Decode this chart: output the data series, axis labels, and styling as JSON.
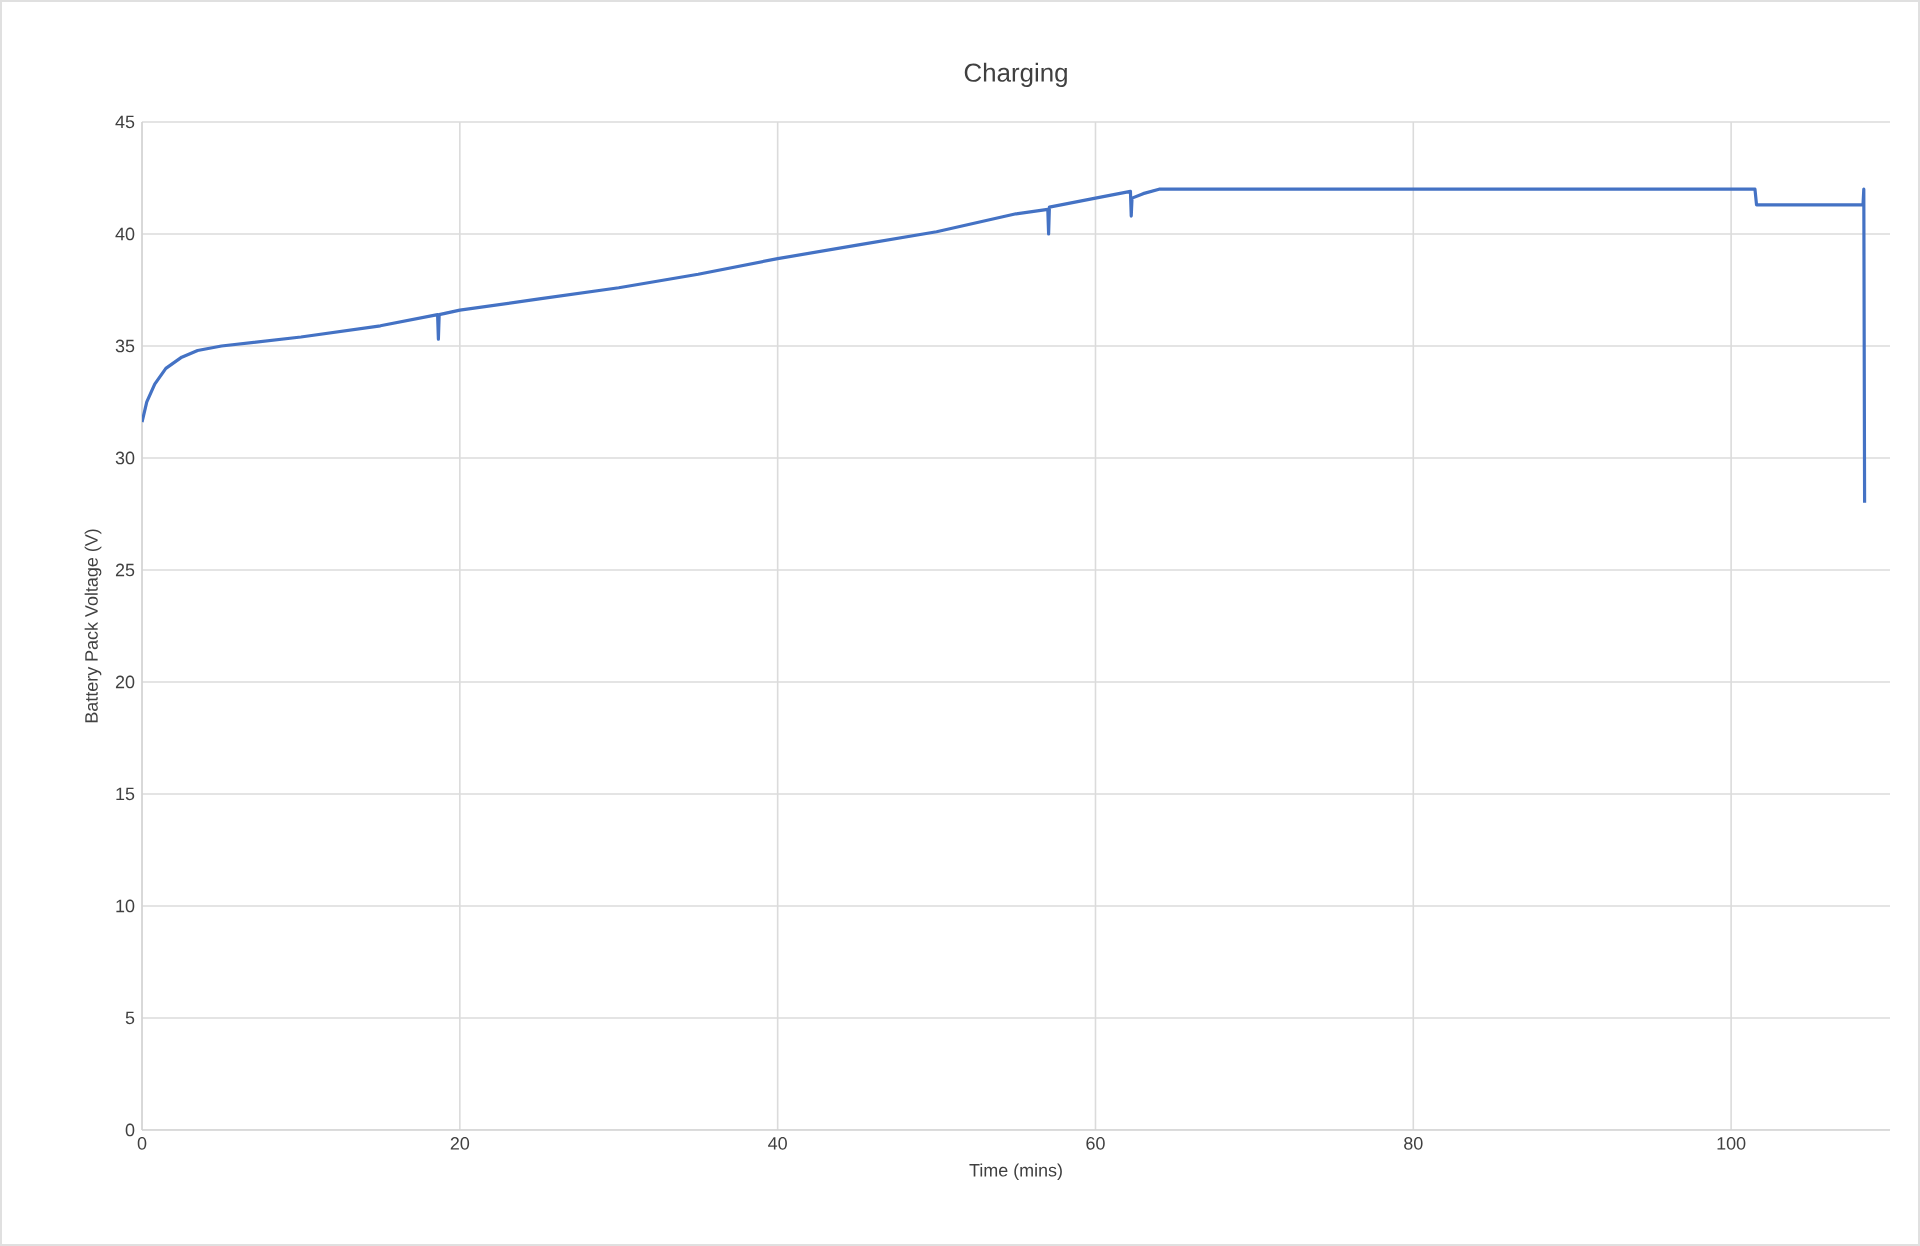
{
  "chart_data": {
    "type": "line",
    "title": "Charging",
    "xlabel": "Time (mins)",
    "ylabel": "Battery Pack Voltage (V)",
    "xlim": [
      0,
      110
    ],
    "xticks": [
      0,
      20,
      40,
      60,
      80,
      100
    ],
    "ylim": [
      0,
      45
    ],
    "yticks": [
      0,
      5,
      10,
      15,
      20,
      25,
      30,
      35,
      40,
      45
    ],
    "grid": true,
    "marker": "none",
    "line_style": "solid",
    "series": [
      {
        "color": "#4472c4",
        "x": [
          0,
          0.3,
          0.8,
          1.5,
          2.5,
          3.5,
          5,
          10,
          15,
          18.6,
          18.65,
          18.7,
          20,
          25,
          30,
          35,
          40,
          45,
          50,
          55,
          57,
          57.05,
          57.1,
          60,
          62.2,
          62.25,
          62.3,
          63,
          64,
          70,
          80,
          90,
          95,
          101.5,
          101.6,
          108.3,
          108.35,
          108.4
        ],
        "values": [
          31.6,
          32.5,
          33.3,
          34.0,
          34.5,
          34.8,
          35.0,
          35.4,
          35.9,
          36.4,
          35.3,
          36.4,
          36.6,
          37.1,
          37.6,
          38.2,
          38.9,
          39.5,
          40.1,
          40.9,
          41.1,
          40.0,
          41.2,
          41.6,
          41.9,
          40.8,
          41.6,
          41.8,
          42.0,
          42.0,
          42.0,
          42.0,
          42.0,
          42.0,
          41.3,
          41.3,
          42.0,
          28.0
        ]
      }
    ]
  }
}
